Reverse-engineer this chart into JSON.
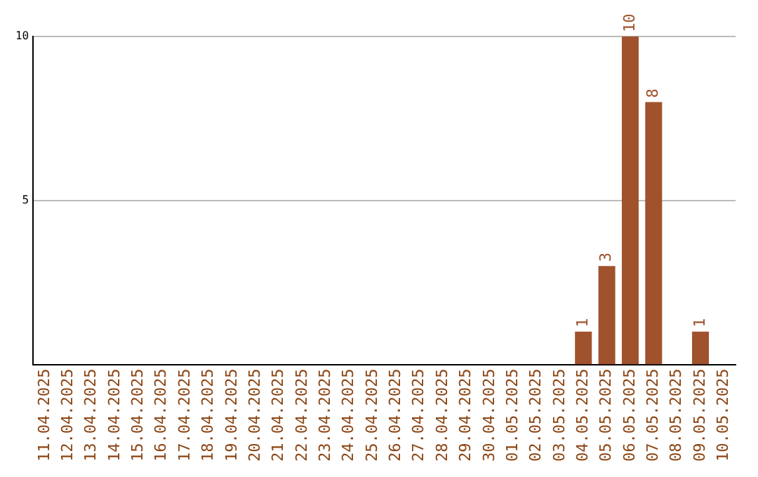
{
  "chart_data": {
    "type": "bar",
    "categories": [
      "11.04.2025",
      "12.04.2025",
      "13.04.2025",
      "14.04.2025",
      "15.04.2025",
      "16.04.2025",
      "17.04.2025",
      "18.04.2025",
      "19.04.2025",
      "20.04.2025",
      "21.04.2025",
      "22.04.2025",
      "23.04.2025",
      "24.04.2025",
      "25.04.2025",
      "26.04.2025",
      "27.04.2025",
      "28.04.2025",
      "29.04.2025",
      "30.04.2025",
      "01.05.2025",
      "02.05.2025",
      "03.05.2025",
      "04.05.2025",
      "05.05.2025",
      "06.05.2025",
      "07.05.2025",
      "08.05.2025",
      "09.05.2025",
      "10.05.2025"
    ],
    "values": [
      0,
      0,
      0,
      0,
      0,
      0,
      0,
      0,
      0,
      0,
      0,
      0,
      0,
      0,
      0,
      0,
      0,
      0,
      0,
      0,
      0,
      0,
      0,
      1,
      3,
      10,
      8,
      0,
      1,
      0
    ],
    "value_labels": [
      null,
      null,
      null,
      null,
      null,
      null,
      null,
      null,
      null,
      null,
      null,
      null,
      null,
      null,
      null,
      null,
      null,
      null,
      null,
      null,
      null,
      null,
      null,
      "1",
      "3",
      "10",
      "8",
      null,
      "1",
      null
    ],
    "color": "#a0522d",
    "ylim": [
      0,
      10
    ],
    "yticks": [
      5,
      10
    ],
    "grid": "y",
    "legend": false
  }
}
